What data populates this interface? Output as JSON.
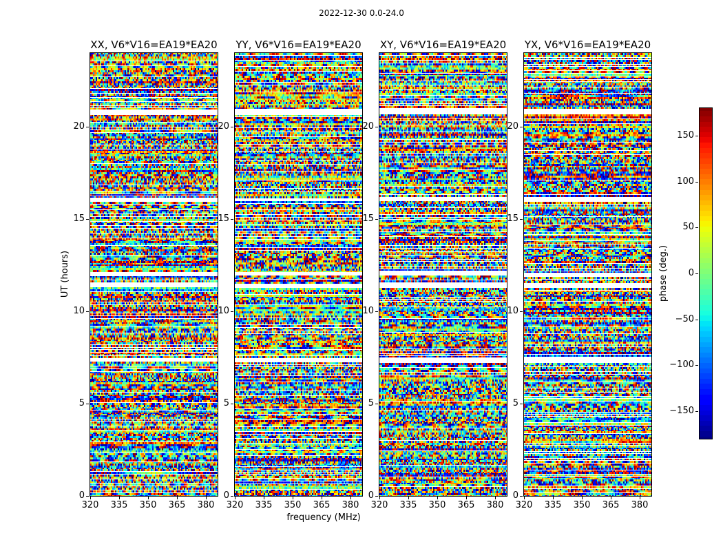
{
  "figure": {
    "title": "2022-12-30 0.0-24.0"
  },
  "xlabel": "frequency (MHz)",
  "ylabel": "UT (hours)",
  "panels": [
    {
      "title": "XX, V6*V16=EA19*EA20"
    },
    {
      "title": "YY, V6*V16=EA19*EA20"
    },
    {
      "title": "XY, V6*V16=EA19*EA20"
    },
    {
      "title": "YX, V6*V16=EA19*EA20"
    }
  ],
  "axes": {
    "xticks": [
      320,
      335,
      350,
      365,
      380
    ],
    "yticks": [
      0,
      5,
      10,
      15,
      20
    ],
    "x_range": [
      320,
      386
    ],
    "y_range": [
      0,
      24
    ]
  },
  "colorbar": {
    "label": "phase (deg.)",
    "ticks": [
      150,
      100,
      50,
      0,
      -50,
      -100,
      -150
    ],
    "range": [
      -180,
      180
    ],
    "colormap": "jet"
  },
  "chart_data": {
    "type": "heatmap",
    "title": "2022-12-30 0.0-24.0",
    "layout": "four side-by-side time-frequency heatmap subplots with shared styling and a jet colorbar on the right",
    "subplot_titles": [
      "XX, V6*V16=EA19*EA20",
      "YY, V6*V16=EA19*EA20",
      "XY, V6*V16=EA19*EA20",
      "YX, V6*V16=EA19*EA20"
    ],
    "xlabel": "frequency (MHz)",
    "ylabel": "UT (hours)",
    "x_ticks_mhz": [
      320,
      335,
      350,
      365,
      380
    ],
    "y_ticks_hours": [
      0,
      5,
      10,
      15,
      20
    ],
    "x_range_mhz": [
      320,
      386
    ],
    "y_range_hours": [
      0,
      24
    ],
    "colormap": "jet",
    "value_label": "phase (deg.)",
    "value_range_deg": [
      -180,
      180
    ],
    "colorbar_ticks_deg": [
      150,
      100,
      50,
      0,
      -50,
      -100,
      -150
    ],
    "flagged_time_gaps_ut_hours": [
      [
        7.25,
        7.5
      ],
      [
        11.3,
        11.52
      ],
      [
        11.9,
        12.12
      ],
      [
        15.95,
        16.18
      ],
      [
        20.65,
        20.95
      ]
    ],
    "description": "Interferometric cross-correlation visibility phase versus frequency (320-386 MHz) and time (0-24 UT hours) for baseline V6*V16=EA19*EA20 on 2022-12-30 for the four polarization products XX, YY, XY, YX. Phase is essentially random multicolored speckle across the band in horizontal integration bands, with occasional smooth phase-gradient fringe stripes and white horizontal gaps where data are flagged/missing; gaps align across all four panels."
  }
}
